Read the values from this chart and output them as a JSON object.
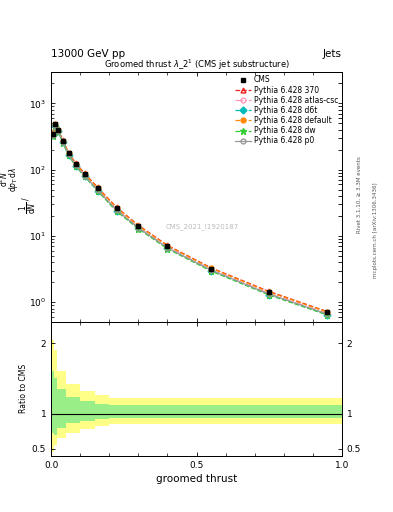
{
  "title_top": "13000 GeV pp",
  "title_right": "Jets",
  "plot_title": "Groomed thrust $\\lambda\\_2^1$ (CMS jet substructure)",
  "xlabel": "groomed thrust",
  "ylabel_lines": [
    "mathrm d$^2$N",
    "mathrm d $p_T$ mathrm d lambda",
    "1 / mathrm d$N$ /"
  ],
  "ratio_ylabel": "Ratio to CMS",
  "watermark": "CMS_2021_I1920187",
  "right_label1": "Rivet 3.1.10, ≥ 3.3M events",
  "right_label2": "mcplots.cern.ch [arXiv:1306.3436]",
  "cms_data_x": [
    0.005,
    0.015,
    0.025,
    0.04,
    0.06,
    0.085,
    0.115,
    0.16,
    0.225,
    0.3,
    0.4,
    0.55,
    0.75,
    0.95
  ],
  "cms_data_y": [
    350,
    480,
    390,
    270,
    175,
    120,
    85,
    52,
    26,
    14,
    7,
    3.2,
    1.4,
    0.7
  ],
  "series": [
    {
      "label": "Pythia 6.428 370",
      "color": "#ee2222",
      "linestyle": "--",
      "marker": "^",
      "markerfacecolor": "none",
      "x": [
        0.005,
        0.015,
        0.025,
        0.04,
        0.06,
        0.085,
        0.115,
        0.16,
        0.225,
        0.3,
        0.4,
        0.55,
        0.75,
        0.95
      ],
      "y": [
        360,
        490,
        400,
        278,
        181,
        124,
        88,
        54,
        27,
        14.5,
        7.2,
        3.3,
        1.45,
        0.72
      ]
    },
    {
      "label": "Pythia 6.428 atlas-csc",
      "color": "#ff99bb",
      "linestyle": "-.",
      "marker": "o",
      "markerfacecolor": "none",
      "x": [
        0.005,
        0.015,
        0.025,
        0.04,
        0.06,
        0.085,
        0.115,
        0.16,
        0.225,
        0.3,
        0.4,
        0.55,
        0.75,
        0.95
      ],
      "y": [
        340,
        470,
        385,
        265,
        172,
        118,
        83,
        50,
        25,
        13.5,
        6.8,
        3.1,
        1.35,
        0.68
      ]
    },
    {
      "label": "Pythia 6.428 d6t",
      "color": "#00bbbb",
      "linestyle": "--",
      "marker": "D",
      "markerfacecolor": "#00bbbb",
      "x": [
        0.005,
        0.015,
        0.025,
        0.04,
        0.06,
        0.085,
        0.115,
        0.16,
        0.225,
        0.3,
        0.4,
        0.55,
        0.75,
        0.95
      ],
      "y": [
        330,
        460,
        378,
        258,
        167,
        114,
        80,
        48,
        24,
        13,
        6.5,
        3.0,
        1.3,
        0.65
      ]
    },
    {
      "label": "Pythia 6.428 default",
      "color": "#ff8800",
      "linestyle": "--",
      "marker": "o",
      "markerfacecolor": "#ff8800",
      "x": [
        0.005,
        0.015,
        0.025,
        0.04,
        0.06,
        0.085,
        0.115,
        0.16,
        0.225,
        0.3,
        0.4,
        0.55,
        0.75,
        0.95
      ],
      "y": [
        355,
        485,
        395,
        273,
        178,
        122,
        86,
        53,
        26.5,
        14.2,
        7.1,
        3.25,
        1.42,
        0.71
      ]
    },
    {
      "label": "Pythia 6.428 dw",
      "color": "#33cc33",
      "linestyle": "--",
      "marker": "*",
      "markerfacecolor": "#33cc33",
      "x": [
        0.005,
        0.015,
        0.025,
        0.04,
        0.06,
        0.085,
        0.115,
        0.16,
        0.225,
        0.3,
        0.4,
        0.55,
        0.75,
        0.95
      ],
      "y": [
        325,
        455,
        375,
        255,
        165,
        112,
        79,
        47.5,
        23.5,
        12.8,
        6.4,
        2.95,
        1.28,
        0.64
      ]
    },
    {
      "label": "Pythia 6.428 p0",
      "color": "#999999",
      "linestyle": "-",
      "marker": "o",
      "markerfacecolor": "none",
      "x": [
        0.005,
        0.015,
        0.025,
        0.04,
        0.06,
        0.085,
        0.115,
        0.16,
        0.225,
        0.3,
        0.4,
        0.55,
        0.75,
        0.95
      ],
      "y": [
        335,
        465,
        380,
        262,
        170,
        116,
        81,
        49,
        24.5,
        13.2,
        6.6,
        3.05,
        1.32,
        0.66
      ]
    }
  ],
  "ratio_bin_edges": [
    0.0,
    0.01,
    0.02,
    0.05,
    0.1,
    0.15,
    0.2,
    1.0
  ],
  "ratio_yellow_lo": [
    0.45,
    0.55,
    0.65,
    0.72,
    0.78,
    0.82,
    0.85
  ],
  "ratio_yellow_hi": [
    2.05,
    1.9,
    1.6,
    1.42,
    1.32,
    1.27,
    1.22
  ],
  "ratio_green_lo": [
    0.72,
    0.7,
    0.8,
    0.86,
    0.9,
    0.92,
    0.93
  ],
  "ratio_green_hi": [
    1.6,
    1.5,
    1.35,
    1.24,
    1.18,
    1.14,
    1.12
  ],
  "ylim_main": [
    0.5,
    3000
  ],
  "ylim_ratio": [
    0.4,
    2.3
  ],
  "xlim": [
    0.0,
    1.0
  ],
  "background_color": "#ffffff"
}
